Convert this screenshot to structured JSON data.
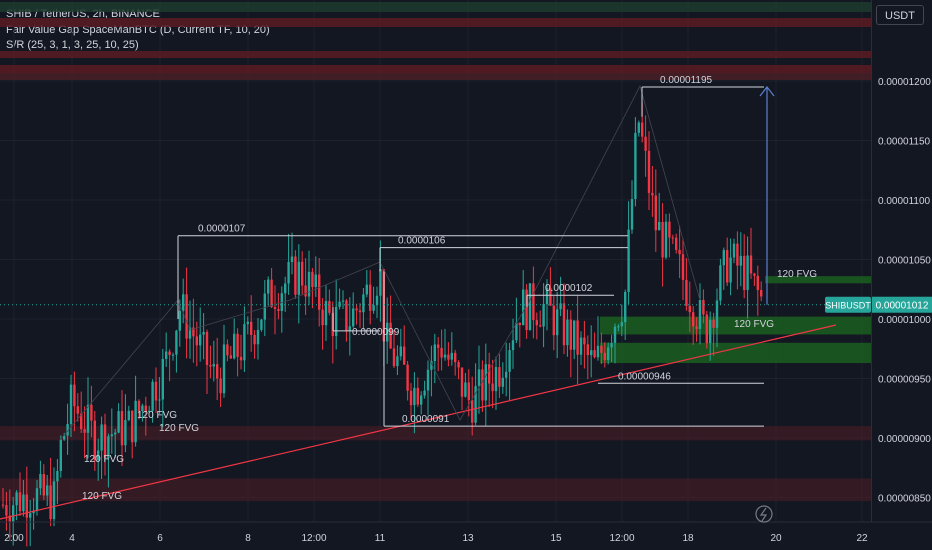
{
  "header": {
    "symbol_line": "SHIB / TetherUS, 2h, BINANCE",
    "indicator1": "Fair Value Gap SpaceManBTC (D, Current TF, 10, 20)",
    "indicator2": "S/R (25, 3, 1, 3, 25, 10, 25)"
  },
  "price_axis": {
    "currency": "USDT"
  },
  "symbol_tag": "SHIBUSDT",
  "last_price": "0.00001012",
  "colors": {
    "bull": "#26a69a",
    "bear": "#f23645",
    "accent": "#2962ff",
    "background": "#131722"
  },
  "chart_data": {
    "type": "candlestick",
    "title": "SHIB / TetherUS, 2h, BINANCE",
    "y_ticks": [
      "0.00001200",
      "0.00001150",
      "0.00001100",
      "0.00001050",
      "0.00001000",
      "0.00000950",
      "0.00000900",
      "0.00000850"
    ],
    "y_range": [
      8.3e-06,
      1.22e-05
    ],
    "x_ticks": [
      "2:00",
      "4",
      "6",
      "8",
      "12:00",
      "11",
      "13",
      "15",
      "12:00",
      "18",
      "20",
      "22"
    ],
    "last_price": 1.012e-05,
    "levels": [
      {
        "label": "0.0000107",
        "value": 1.07e-05
      },
      {
        "label": "0.0000106",
        "value": 1.06e-05
      },
      {
        "label": "0.0000099",
        "value": 9.9e-06
      },
      {
        "label": "0.0000102",
        "value": 1.02e-05
      },
      {
        "label": "0.00001195",
        "value": 1.195e-05
      },
      {
        "label": "0.00000946",
        "value": 9.46e-06
      },
      {
        "label": "0.0000091",
        "value": 9.1e-06
      }
    ],
    "fvg_labels": [
      "120 FVG",
      "120 FVG",
      "120 FVG",
      "120 FVG",
      "120 FVG",
      "120 FVG"
    ],
    "fvg_zones": [
      {
        "low": 9.63e-06,
        "high": 9.8e-06,
        "color": "green"
      },
      {
        "low": 9.87e-06,
        "high": 1.002e-05,
        "color": "green"
      },
      {
        "low": 1.03e-05,
        "high": 1.036e-05,
        "color": "green"
      },
      {
        "low": 8.47e-06,
        "high": 8.66e-06,
        "color": "red"
      },
      {
        "low": 8.98e-06,
        "high": 9.1e-06,
        "color": "red"
      }
    ],
    "grid": true
  }
}
